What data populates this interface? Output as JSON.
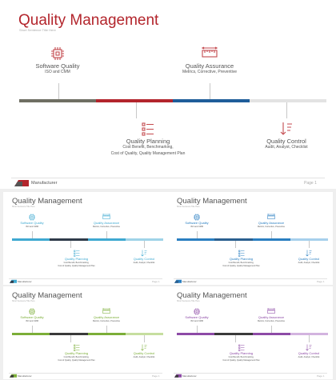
{
  "slide": {
    "title": "Quality Management",
    "subtitle": "Short Sentence Title Here",
    "footer_logo": "Manufacturer",
    "footer_page": "Page 1",
    "items": [
      {
        "icon": "chip-icon",
        "title": "Software Quality",
        "desc": [
          "ISO and CMM"
        ]
      },
      {
        "icon": "ruler-icon",
        "title": "Quality Assurance",
        "desc": [
          "Metrics, Corrective, Preventive"
        ]
      },
      {
        "icon": "checklist-icon",
        "title": "Quality Planning",
        "desc": [
          "Cost Benefit, Benchmarking,",
          "Cost of Quality, Quality Management Plan"
        ]
      },
      {
        "icon": "sort-down-icon",
        "title": "Quality Control",
        "desc": [
          "Audit, Analyst, Checklist"
        ]
      }
    ]
  },
  "themes": [
    {
      "name": "red",
      "title_color": "#b3252c",
      "item_color": "#555555",
      "bar": [
        "#6f6f63",
        "#b3252c",
        "#1f5d9a",
        "#e3e3e3"
      ],
      "logo": [
        "#b3252c",
        "#555555"
      ]
    },
    {
      "name": "cyan",
      "title_color": "#555555",
      "item_color": "#3fa9d1",
      "bar": [
        "#3fa9d1",
        "#2f3b4a",
        "#3fa9d1",
        "#9fd3e8"
      ],
      "logo": [
        "#3fa9d1",
        "#2f3b4a"
      ]
    },
    {
      "name": "blue",
      "title_color": "#555555",
      "item_color": "#2a7fc1",
      "bar": [
        "#2a7fc1",
        "#2a5f8f",
        "#2a7fc1",
        "#a7d0ec"
      ],
      "logo": [
        "#2a7fc1",
        "#2a5f8f"
      ]
    },
    {
      "name": "green",
      "title_color": "#555555",
      "item_color": "#7cae38",
      "bar": [
        "#7cae38",
        "#3a3a3a",
        "#7cae38",
        "#c6de9f"
      ],
      "logo": [
        "#7cae38",
        "#3a3a3a"
      ]
    },
    {
      "name": "purple",
      "title_color": "#555555",
      "item_color": "#8d4aa6",
      "bar": [
        "#8d4aa6",
        "#3a3a3a",
        "#8d4aa6",
        "#d3b4df"
      ],
      "logo": [
        "#8d4aa6",
        "#3a3a3a"
      ]
    }
  ]
}
